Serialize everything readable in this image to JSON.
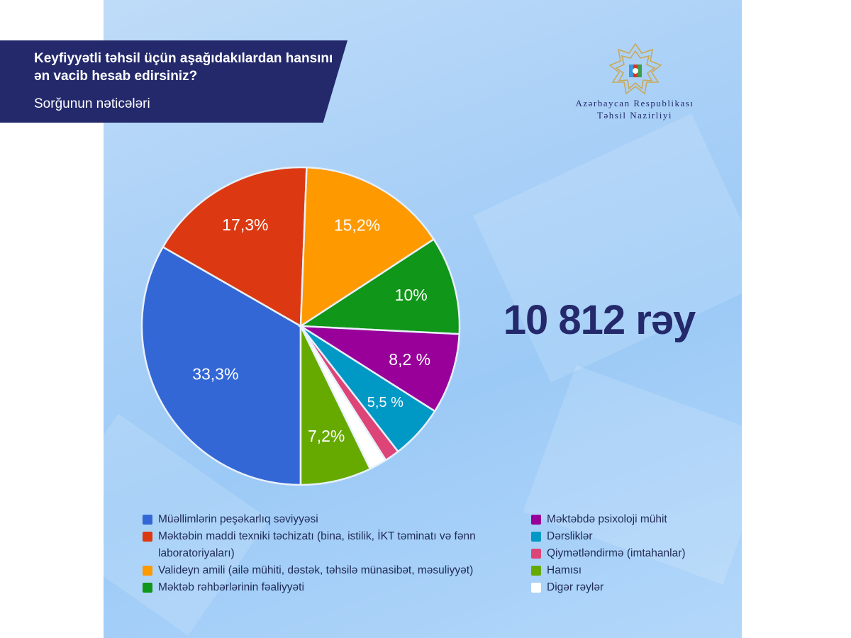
{
  "header": {
    "title": "Keyfiyyətli təhsil üçün aşağıdakılardan hansını ən vacib hesab edirsiniz?",
    "subtitle": "Sorğunun nəticələri"
  },
  "logo": {
    "line1": "Azərbaycan Respublikası",
    "line2": "Təhsil Nazirliyi"
  },
  "total": "10 812 rəy",
  "chart_data": {
    "type": "pie",
    "start_angle_deg": 90,
    "direction": "clockwise",
    "slices": [
      {
        "label": "Müəllimlərin peşəkarlıq səviyyəsi",
        "value": 33.3,
        "display": "33,3%",
        "color": "#3367d6"
      },
      {
        "label": "Məktəbin maddi texniki təchizatı (bina, istilik, İKT təminatı və fənn laboratoriyaları)",
        "value": 17.3,
        "display": "17,3%",
        "color": "#dc3912"
      },
      {
        "label": "Valideyn amili (ailə mühiti, dəstək, təhsilə münasibət, məsuliyyət)",
        "value": 15.2,
        "display": "15,2%",
        "color": "#ff9900"
      },
      {
        "label": "Məktəb rəhbərlərinin fəaliyyəti",
        "value": 10,
        "display": "10%",
        "color": "#109618"
      },
      {
        "label": "Məktəbdə psixoloji mühit",
        "value": 8.2,
        "display": "8,2 %",
        "color": "#990099"
      },
      {
        "label": "Dərsliklər",
        "value": 5.5,
        "display": "5,5 %",
        "color": "#0099c6"
      },
      {
        "label": "Qiymətləndirmə (imtahanlar)",
        "value": 1.5,
        "display": "",
        "color": "#dd4477"
      },
      {
        "label": "Digər rəylər",
        "value": 1.8,
        "display": "",
        "color": "#ffffff"
      },
      {
        "label": "Hamısı",
        "value": 7.2,
        "display": "7,2%",
        "color": "#66aa00"
      }
    ],
    "legend_left": [
      {
        "label": "Müəllimlərin peşəkarlıq səviyyəsi",
        "color": "#3367d6"
      },
      {
        "label": "Məktəbin maddi texniki təchizatı (bina, istilik, İKT təminatı və fənn laboratoriyaları)",
        "color": "#dc3912"
      },
      {
        "label": "Valideyn amili (ailə mühiti, dəstək, təhsilə münasibət, məsuliyyət)",
        "color": "#ff9900"
      },
      {
        "label": "Məktəb rəhbərlərinin fəaliyyəti",
        "color": "#109618"
      }
    ],
    "legend_right": [
      {
        "label": "Məktəbdə psixoloji mühit",
        "color": "#990099"
      },
      {
        "label": "Dərsliklər",
        "color": "#0099c6"
      },
      {
        "label": "Qiymətləndirmə (imtahanlar)",
        "color": "#dd4477"
      },
      {
        "label": "Hamısı",
        "color": "#66aa00"
      },
      {
        "label": "Digər rəylər",
        "color": "#ffffff"
      }
    ]
  }
}
